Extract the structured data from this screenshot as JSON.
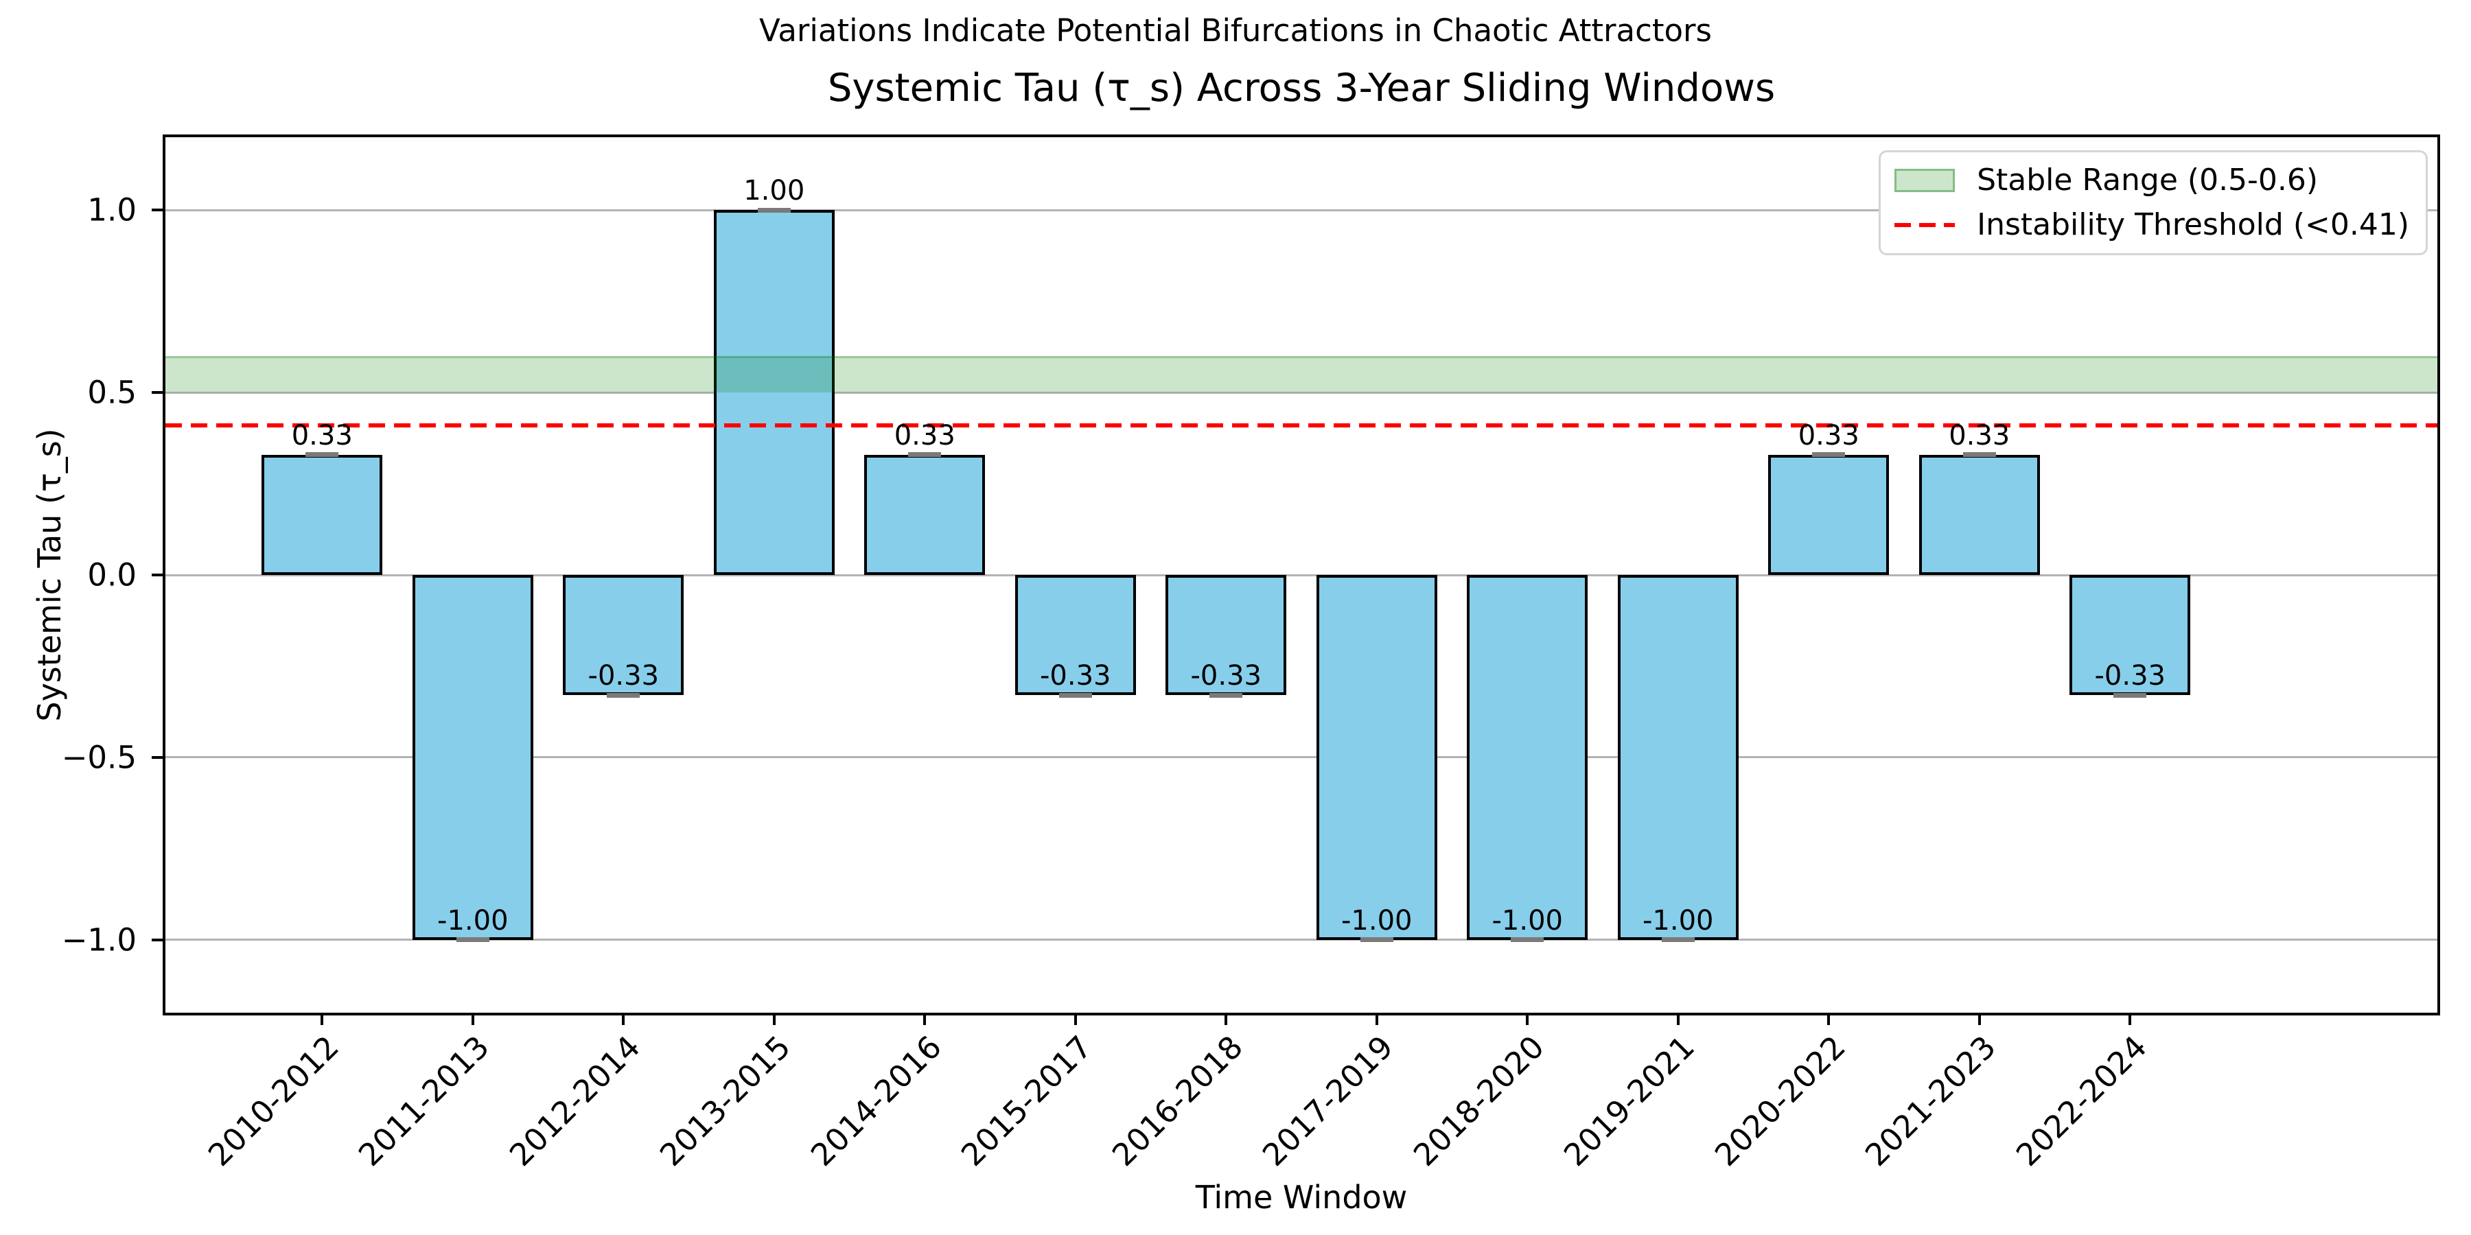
{
  "chart_data": {
    "type": "bar",
    "suptitle": "Variations Indicate Potential Bifurcations in Chaotic Attractors",
    "title": "Systemic Tau (τ_s) Across 3-Year Sliding Windows",
    "xlabel": "Time Window",
    "ylabel": "Systemic Tau (τ_s)",
    "categories": [
      "2010-2012",
      "2011-2013",
      "2012-2014",
      "2013-2015",
      "2014-2016",
      "2015-2017",
      "2016-2018",
      "2017-2019",
      "2018-2020",
      "2019-2021",
      "2020-2022",
      "2021-2023",
      "2022-2024"
    ],
    "values": [
      0.33,
      -1.0,
      -0.33,
      1.0,
      0.33,
      -0.33,
      -0.33,
      -1.0,
      -1.0,
      -1.0,
      0.33,
      0.33,
      -0.33
    ],
    "bar_labels": [
      "0.33",
      "-1.00",
      "-0.33",
      "1.00",
      "0.33",
      "-0.33",
      "-0.33",
      "-1.00",
      "-1.00",
      "-1.00",
      "0.33",
      "0.33",
      "-0.33"
    ],
    "ylim": [
      -1.2,
      1.2
    ],
    "yticks": [
      {
        "value": 1.0,
        "label": "1.0"
      },
      {
        "value": 0.5,
        "label": "0.5"
      },
      {
        "value": 0.0,
        "label": "0.0"
      },
      {
        "value": -0.5,
        "label": "−0.5"
      },
      {
        "value": -1.0,
        "label": "−1.0"
      }
    ],
    "grid": true,
    "x_padding_units": 1.04,
    "bar_width_units": 0.8,
    "colors": {
      "bar_fill": "#87CEEB",
      "bar_edge": "#000000",
      "grid": "#b3b3b3",
      "stable_band": "rgba(0,128,0,0.2)",
      "threshold": "#ff0000",
      "error_cap": "#7a7a7a"
    },
    "stable_range": {
      "min": 0.5,
      "max": 0.6
    },
    "threshold": {
      "value": 0.41,
      "style": "dashed"
    },
    "legend": {
      "position": "upper right",
      "items": [
        {
          "label": "Stable Range (0.5-0.6)",
          "marker": "green-patch"
        },
        {
          "label": "Instability Threshold (<0.41)",
          "marker": "red-dashed-line"
        }
      ]
    }
  }
}
